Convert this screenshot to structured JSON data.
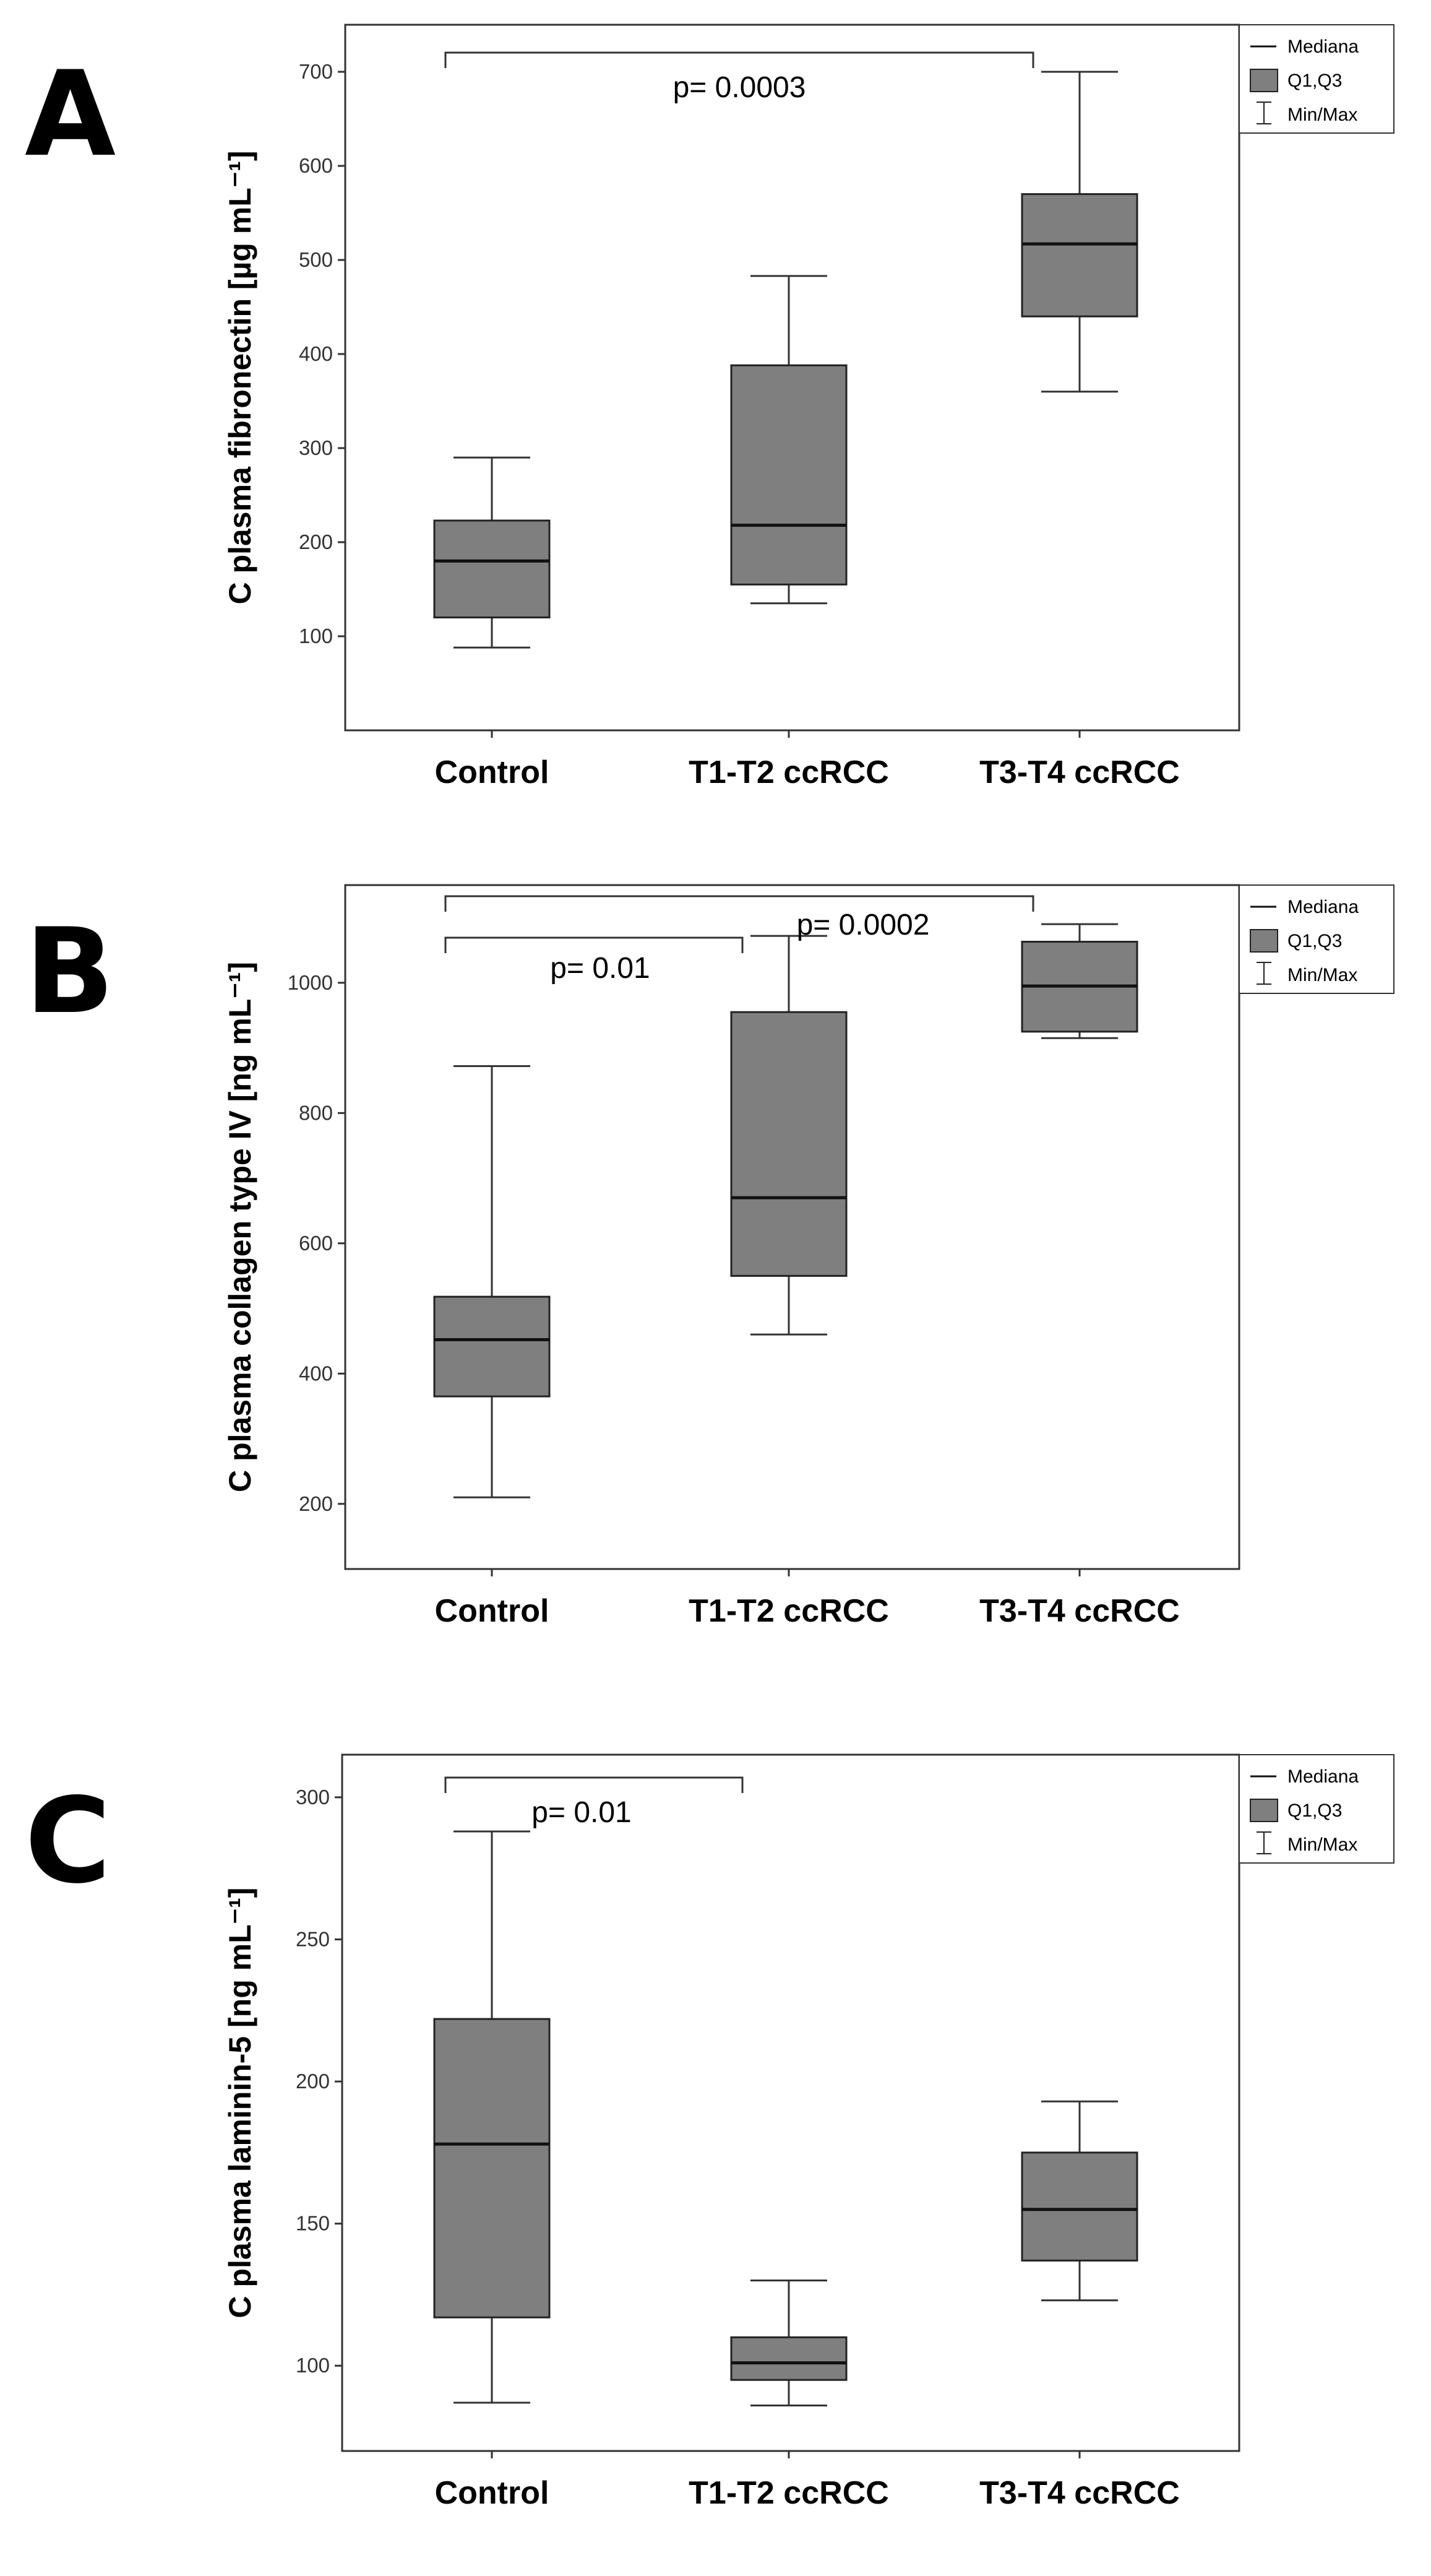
{
  "chart_data": [
    {
      "type": "boxplot",
      "panel_label": "A",
      "ylabel": "C plasma fibronectin [µg mL⁻¹]",
      "ylim": [
        0,
        750
      ],
      "yticks": [
        "100",
        "200",
        "300",
        "400",
        "500",
        "600",
        "700"
      ],
      "categories": [
        "Control",
        "T1-T2 ccRCC",
        "T3-T4 ccRCC"
      ],
      "boxes": [
        {
          "category": "Control",
          "min": 88,
          "q1": 120,
          "median": 180,
          "q3": 223,
          "max": 290
        },
        {
          "category": "T1-T2 ccRCC",
          "min": 135,
          "q1": 155,
          "median": 218,
          "q3": 388,
          "max": 483
        },
        {
          "category": "T3-T4 ccRCC",
          "min": 360,
          "q1": 440,
          "median": 517,
          "q3": 570,
          "max": 700
        }
      ],
      "comparisons": [
        {
          "from": 0,
          "to": 2,
          "label": "p= 0.0003"
        }
      ],
      "legend": [
        "Mediana",
        "Q1,Q3",
        "Min/Max"
      ]
    },
    {
      "type": "boxplot",
      "panel_label": "B",
      "ylabel": "C plasma collagen type IV [ng mL⁻¹]",
      "ylim": [
        100,
        1150
      ],
      "yticks": [
        "200",
        "400",
        "600",
        "800",
        "1000"
      ],
      "categories": [
        "Control",
        "T1-T2 ccRCC",
        "T3-T4 ccRCC"
      ],
      "boxes": [
        {
          "category": "Control",
          "min": 210,
          "q1": 365,
          "median": 452,
          "q3": 518,
          "max": 872
        },
        {
          "category": "T1-T2 ccRCC",
          "min": 460,
          "q1": 550,
          "median": 670,
          "q3": 955,
          "max": 1072
        },
        {
          "category": "T3-T4 ccRCC",
          "min": 915,
          "q1": 925,
          "median": 995,
          "q3": 1063,
          "max": 1090
        }
      ],
      "comparisons": [
        {
          "from": 0,
          "to": 2,
          "label": "p= 0.0002"
        },
        {
          "from": 0,
          "to": 1,
          "label": "p= 0.01"
        }
      ],
      "legend": [
        "Mediana",
        "Q1,Q3",
        "Min/Max"
      ]
    },
    {
      "type": "boxplot",
      "panel_label": "C",
      "ylabel": "C plasma laminin-5 [ng mL⁻¹]",
      "ylim": [
        70,
        315
      ],
      "yticks": [
        "100",
        "150",
        "200",
        "250",
        "300"
      ],
      "categories": [
        "Control",
        "T1-T2 ccRCC",
        "T3-T4 ccRCC"
      ],
      "boxes": [
        {
          "category": "Control",
          "min": 87,
          "q1": 117,
          "median": 178,
          "q3": 222,
          "max": 288
        },
        {
          "category": "T1-T2 ccRCC",
          "min": 86,
          "q1": 95,
          "median": 101,
          "q3": 110,
          "max": 130
        },
        {
          "category": "T3-T4 ccRCC",
          "min": 123,
          "q1": 137,
          "median": 155,
          "q3": 175,
          "max": 193
        }
      ],
      "comparisons": [
        {
          "from": 0,
          "to": 1,
          "label": "p= 0.01"
        }
      ],
      "legend": [
        "Mediana",
        "Q1,Q3",
        "Min/Max"
      ]
    }
  ]
}
